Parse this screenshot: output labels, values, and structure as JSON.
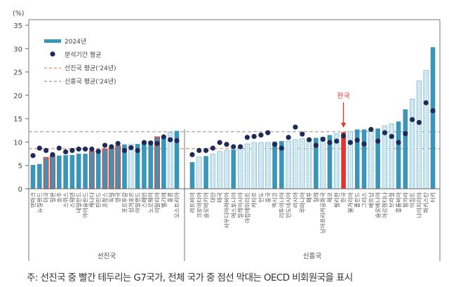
{
  "chart_data": {
    "type": "bar",
    "unit_label": "(%)",
    "ylim": [
      0,
      35
    ],
    "yticks": [
      0,
      5,
      10,
      15,
      20,
      25,
      30,
      35
    ],
    "legend": {
      "placement": "top-left",
      "bar": "2024년",
      "dot": "분석기간 평균",
      "adv_line": "선진국 평균('24년)",
      "emg_line": "신흥국 평균('24년)"
    },
    "colors": {
      "bar": "#3a96b8",
      "hatch_fill": "#d3e9f2",
      "hatch_border": "#7fbfd6",
      "dot": "#1e2b58",
      "g7_border": "#e8413c",
      "korea": "#e8312b",
      "adv_line": "#e9a47c",
      "emg_line": "#a8a8a8"
    },
    "reference_lines": {
      "advanced_avg_2024": 8.6,
      "emerging_avg_2024": 12.2
    },
    "annotation": {
      "text": "한국",
      "target": "한국"
    },
    "groups": [
      {
        "name": "선진국",
        "countries": [
          {
            "name": "덴마크",
            "value": 5.1,
            "avg": 7.1
          },
          {
            "name": "뉴질랜드",
            "value": 5.3,
            "avg": 8.7
          },
          {
            "name": "미국",
            "value": 6.7,
            "avg": 8.2,
            "g7": true
          },
          {
            "name": "일본",
            "value": 7.1,
            "avg": 7.3,
            "g7": true
          },
          {
            "name": "호주",
            "value": 7.1,
            "avg": 8.7
          },
          {
            "name": "스위스",
            "value": 7.2,
            "avg": 7.9
          },
          {
            "name": "스웨덴",
            "value": 7.2,
            "avg": 8.2
          },
          {
            "name": "네덜란드",
            "value": 7.5,
            "avg": 8.5
          },
          {
            "name": "아이슬란드",
            "value": 7.5,
            "avg": 8.5
          },
          {
            "name": "캐나다",
            "value": 8.0,
            "avg": 8.5,
            "g7": true
          },
          {
            "name": "핀란드",
            "value": 8.4,
            "avg": 8.0
          },
          {
            "name": "프랑스",
            "value": 8.5,
            "avg": 9.3,
            "g7": true
          },
          {
            "name": "독일",
            "value": 8.6,
            "avg": 9.0,
            "g7": true
          },
          {
            "name": "영국",
            "value": 9.2,
            "avg": 9.7,
            "g7": true
          },
          {
            "name": "포르투갈",
            "value": 9.5,
            "avg": 8.2
          },
          {
            "name": "싱가포르",
            "value": 9.5,
            "avg": 8.8,
            "non_oecd": true
          },
          {
            "name": "아일랜드",
            "value": 9.6,
            "avg": 8.2
          },
          {
            "name": "스페인",
            "value": 10.2,
            "avg": 9.9
          },
          {
            "name": "노르웨이",
            "value": 10.2,
            "avg": 9.8
          },
          {
            "name": "이탈리아",
            "value": 11.1,
            "avg": 9.7,
            "g7": true
          },
          {
            "name": "벨기에",
            "value": 11.2,
            "avg": 11.1
          },
          {
            "name": "홍콩",
            "value": 12.1,
            "avg": 10.5,
            "non_oecd": true
          },
          {
            "name": "오스트리아",
            "value": 12.4,
            "avg": 10.3
          }
        ]
      },
      {
        "name": "신흥국",
        "countries": [
          {
            "name": "라트비아",
            "value": 5.7,
            "avg": 7.3
          },
          {
            "name": "크로아티아",
            "value": 6.8,
            "avg": 8.2,
            "non_oecd": true
          },
          {
            "name": "슬로바키아",
            "value": 7.0,
            "avg": 8.2
          },
          {
            "name": "대만",
            "value": 7.4,
            "avg": 8.7,
            "non_oecd": true
          },
          {
            "name": "태국",
            "value": 8.0,
            "avg": 9.9,
            "non_oecd": true
          },
          {
            "name": "사우디아라비아",
            "value": 8.2,
            "avg": 9.5,
            "non_oecd": true
          },
          {
            "name": "에스토니아",
            "value": 8.4,
            "avg": 9.0
          },
          {
            "name": "말레이시아",
            "value": 8.9,
            "avg": 9.0,
            "non_oecd": true
          },
          {
            "name": "아랍에미리트",
            "value": 9.6,
            "avg": 11.0,
            "non_oecd": true
          },
          {
            "name": "카타르",
            "value": 9.9,
            "avg": 11.2,
            "non_oecd": true
          },
          {
            "name": "인도",
            "value": 9.9,
            "avg": 11.5,
            "non_oecd": true
          },
          {
            "name": "중국",
            "value": 9.9,
            "avg": 12.0,
            "non_oecd": true
          },
          {
            "name": "멕시코",
            "value": 10.1,
            "avg": 9.5
          },
          {
            "name": "리투아니아",
            "value": 10.2,
            "avg": 8.7
          },
          {
            "name": "인도네시아",
            "value": 10.2,
            "avg": 11.0,
            "non_oecd": true
          },
          {
            "name": "러시아",
            "value": 10.5,
            "avg": 13.2,
            "non_oecd": true
          },
          {
            "name": "루마니아",
            "value": 10.7,
            "avg": 11.7,
            "non_oecd": true
          },
          {
            "name": "페루",
            "value": 10.6,
            "avg": 10.5,
            "non_oecd": true
          },
          {
            "name": "칠레",
            "value": 10.9,
            "avg": 9.3
          },
          {
            "name": "남아프리카공화국",
            "value": 11.1,
            "avg": 10.6,
            "non_oecd": true
          },
          {
            "name": "체코",
            "value": 11.5,
            "avg": 9.9
          },
          {
            "name": "필리핀",
            "value": 11.8,
            "avg": 10.2,
            "non_oecd": true
          },
          {
            "name": "한국",
            "value": 12.1,
            "avg": 11.3,
            "korea": true
          },
          {
            "name": "불가리아",
            "value": 12.3,
            "avg": 9.9,
            "non_oecd": true
          },
          {
            "name": "폴란드",
            "value": 12.7,
            "avg": 10.4
          },
          {
            "name": "그리스",
            "value": 12.7,
            "avg": 9.6
          },
          {
            "name": "베트남",
            "value": 12.4,
            "avg": 12.7,
            "non_oecd": true
          },
          {
            "name": "슬로베니아",
            "value": 12.9,
            "avg": 10.2
          },
          {
            "name": "아르헨티나",
            "value": 13.5,
            "avg": 12.0,
            "non_oecd": true
          },
          {
            "name": "브라질",
            "value": 13.9,
            "avg": 11.2,
            "non_oecd": true
          },
          {
            "name": "콜롬비아",
            "value": 14.4,
            "avg": 9.9
          },
          {
            "name": "헝가리",
            "value": 17.0,
            "avg": 11.8
          },
          {
            "name": "이집트",
            "value": 19.2,
            "avg": 14.8,
            "non_oecd": true
          },
          {
            "name": "나이지리아",
            "value": 23.1,
            "avg": 14.2,
            "non_oecd": true
          },
          {
            "name": "파키스탄",
            "value": 25.3,
            "avg": 18.4,
            "non_oecd": true
          },
          {
            "name": "터키",
            "value": 30.3,
            "avg": 16.7
          }
        ]
      }
    ]
  },
  "footnote": "주: 선진국 중 빨간 테두리는 G7국가, 전체 국가 중 점선 막대는 OECD 비회원국을 표시"
}
